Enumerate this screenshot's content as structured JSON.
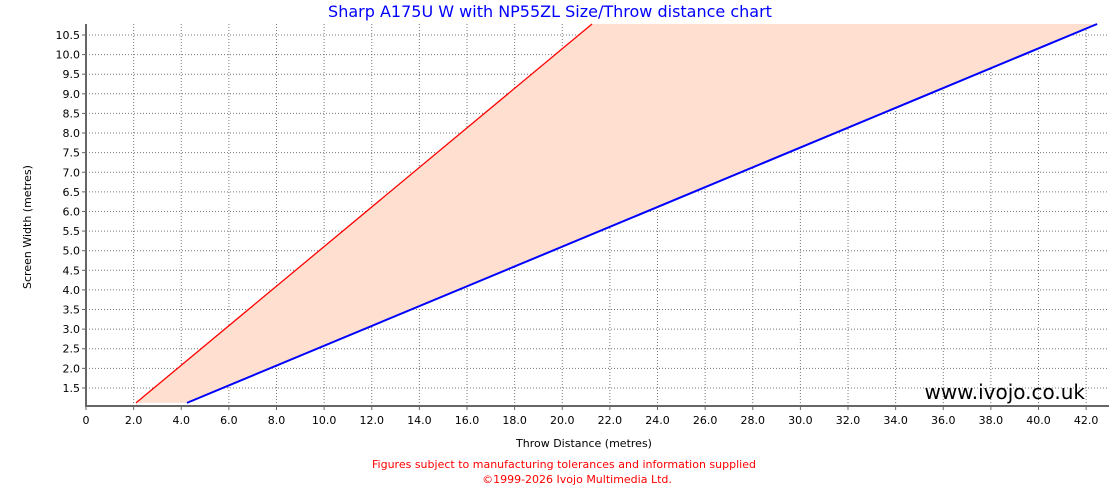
{
  "chart_data": {
    "type": "area",
    "title": "Sharp A175U W with NP55ZL Size/Throw distance chart",
    "xlabel": "Throw Distance (metres)",
    "ylabel": "Screen Width (metres)",
    "xlim": [
      0,
      42.96
    ],
    "ylim": [
      1.04,
      10.78
    ],
    "xticks": [
      "0",
      "2.0",
      "4.0",
      "6.0",
      "8.0",
      "10.0",
      "12.0",
      "14.0",
      "16.0",
      "18.0",
      "20.0",
      "22.0",
      "24.0",
      "26.0",
      "28.0",
      "30.0",
      "32.0",
      "34.0",
      "36.0",
      "38.0",
      "40.0",
      "42.0"
    ],
    "yticks": [
      "1.5",
      "2.0",
      "2.5",
      "3.0",
      "3.5",
      "4.0",
      "4.5",
      "5.0",
      "5.5",
      "6.0",
      "6.5",
      "7.0",
      "7.5",
      "8.0",
      "8.5",
      "9.0",
      "9.5",
      "10.0",
      "10.5"
    ],
    "grid": true,
    "series": [
      {
        "role": "min throw",
        "color": "#ff0000",
        "x": [
          2.1,
          21.25
        ],
        "y": [
          1.12,
          10.78
        ]
      },
      {
        "role": "max throw",
        "color": "#0000ff",
        "x": [
          4.24,
          42.46
        ],
        "y": [
          1.12,
          10.78
        ]
      }
    ],
    "fill_color": "#ffe0d0"
  },
  "watermark": "www.ivojo.co.uk",
  "notes": {
    "line1": "Figures subject to manufacturing tolerances and information supplied",
    "line2": "©1999-2026 Ivojo Multimedia Ltd."
  }
}
